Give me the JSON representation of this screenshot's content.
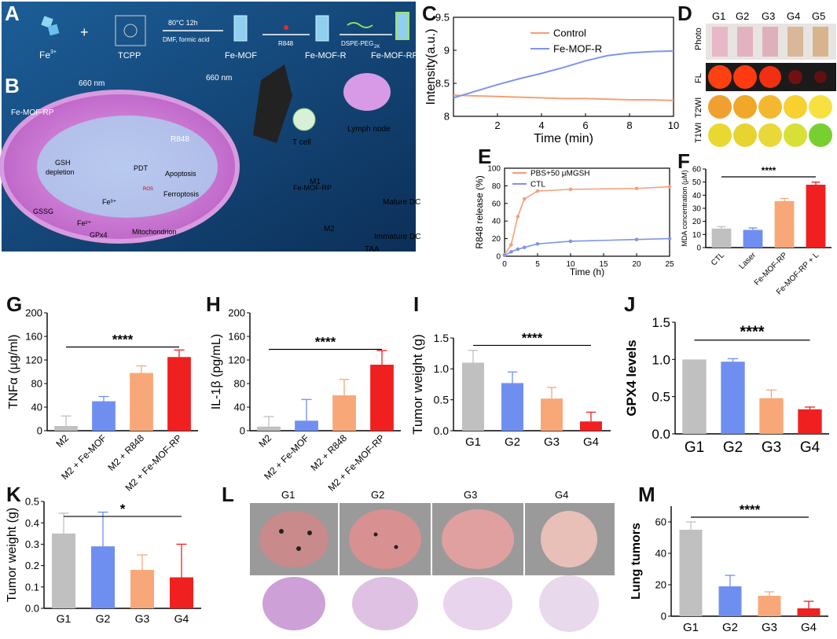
{
  "labels": {
    "A": "A",
    "B": "B",
    "C": "C",
    "D": "D",
    "E": "E",
    "F": "F",
    "G": "G",
    "H": "H",
    "I": "I",
    "J": "J",
    "K": "K",
    "L": "L",
    "M": "M"
  },
  "colors": {
    "grey": "#c0c0c0",
    "blue": "#6f8ff0",
    "orange": "#f8a878",
    "red": "#f02020",
    "line_orange": "#f4a078",
    "line_blue": "#7f95e6"
  },
  "schematic": {
    "fe": "Fe",
    "fe_sup": "3+",
    "tcpp": "TCPP",
    "cond1": "80°C 12h",
    "cond2": "DMF, formic acid",
    "femof": "Fe-MOF",
    "r848": "R848",
    "femofr": "Fe-MOF-R",
    "dspe": "DSPE-PEG",
    "dspe_sub": "2K",
    "femofrp": "Fe-MOF-RP",
    "nm660": "660 nm",
    "nm660b": "660 nm",
    "cell_femofrp": "Fe-MOF-RP",
    "r848b": "R848",
    "pdt": "PDT",
    "apoptosis": "Apoptosis",
    "gsh": "GSH",
    "depletion": "depletion",
    "ros": "ROS",
    "ferroptosis": "Ferroptosis",
    "fe3": "Fe³⁺",
    "gssg": "GSSG",
    "fe2": "Fe²⁺",
    "mito": "Mitochondrion",
    "gpx4": "GPx4",
    "tcell": "T cell",
    "lymph": "Lymph node",
    "m1": "M1",
    "m2": "M2",
    "femofrp_mid": "Fe-MOF-RP",
    "mature": "Mature DC",
    "immature": "Immature DC",
    "taa": "TAA"
  },
  "panel_d": {
    "groups": [
      "G1",
      "G2",
      "G3",
      "G4",
      "G5"
    ],
    "rows": [
      "Photo",
      "FL",
      "T2WI",
      "T1WI"
    ]
  },
  "panel_l": {
    "groups": [
      "G1",
      "G2",
      "G3",
      "G4"
    ]
  },
  "chart_data": [
    {
      "id": "C",
      "type": "line",
      "xlabel": "Time (min)",
      "ylabel": "Intensity(a.u.)",
      "xlim": [
        0,
        10
      ],
      "ylim": [
        8,
        9.5
      ],
      "xticks": [
        2,
        4,
        6,
        8,
        10
      ],
      "yticks": [
        8,
        8.5,
        9,
        9.5
      ],
      "series": [
        {
          "name": "Control",
          "x": [
            0,
            1,
            2,
            3,
            4,
            5,
            6,
            7,
            8,
            9,
            10
          ],
          "y": [
            8.32,
            8.31,
            8.3,
            8.29,
            8.28,
            8.27,
            8.27,
            8.26,
            8.25,
            8.25,
            8.24
          ]
        },
        {
          "name": "Fe-MOF-R",
          "x": [
            0,
            1,
            2,
            3,
            4,
            5,
            6,
            7,
            8,
            9,
            10
          ],
          "y": [
            8.28,
            8.38,
            8.48,
            8.57,
            8.65,
            8.74,
            8.84,
            8.92,
            8.96,
            8.98,
            8.99
          ]
        }
      ]
    },
    {
      "id": "E",
      "type": "line",
      "xlabel": "Time (h)",
      "ylabel": "R848 release (%)",
      "xlim": [
        0,
        25
      ],
      "ylim": [
        0,
        100
      ],
      "xticks": [
        0,
        5,
        10,
        15,
        20,
        25
      ],
      "yticks": [
        0,
        20,
        40,
        60,
        80,
        100
      ],
      "series": [
        {
          "name": "PBS+50 μMGSH",
          "x": [
            0,
            1,
            2,
            3,
            5,
            10,
            20,
            25
          ],
          "y": [
            2,
            13,
            45,
            65,
            74,
            76,
            77,
            79
          ]
        },
        {
          "name": "CTL",
          "x": [
            0,
            1,
            2,
            3,
            5,
            10,
            20,
            25
          ],
          "y": [
            1,
            5,
            8,
            10,
            14,
            17,
            19,
            20
          ]
        }
      ]
    },
    {
      "id": "F",
      "type": "bar",
      "ylabel": "MDA concentration (μM)",
      "ylim": [
        0,
        60
      ],
      "yticks": [
        0,
        10,
        20,
        30,
        40,
        50,
        60
      ],
      "categories": [
        "CTL",
        "Laser",
        "Fe-MOF-RP",
        "Fe-MOF-RP + L"
      ],
      "values": [
        14.5,
        13.5,
        35.5,
        48
      ],
      "errors": [
        1.5,
        1.5,
        2,
        2
      ],
      "significance": "****"
    },
    {
      "id": "G",
      "type": "bar",
      "ylabel": "TNFα (μg/ml)",
      "ylim": [
        0,
        200
      ],
      "yticks": [
        0,
        40,
        80,
        120,
        160,
        200
      ],
      "categories": [
        "M2",
        "M2 + Fe-MOF",
        "M2 + R848",
        "M2 + Fe-MOF-RP"
      ],
      "values": [
        8,
        50,
        98,
        125
      ],
      "errors": [
        17,
        8,
        12,
        12
      ],
      "significance": "****"
    },
    {
      "id": "H",
      "type": "bar",
      "ylabel": "IL-1β (pg/mL)",
      "ylim": [
        0,
        200
      ],
      "yticks": [
        0,
        40,
        80,
        120,
        160,
        200
      ],
      "categories": [
        "M2",
        "M2 + Fe-MOF",
        "M2 + R848",
        "M2 + Fe-MOF-RP"
      ],
      "values": [
        7,
        17,
        60,
        112
      ],
      "errors": [
        17,
        36,
        27,
        24
      ],
      "significance": "****"
    },
    {
      "id": "I",
      "type": "bar",
      "ylabel": "Tumor weight (g)",
      "ylim": [
        0,
        1.5
      ],
      "yticks": [
        0,
        0.5,
        1.0,
        1.5
      ],
      "categories": [
        "G1",
        "G2",
        "G3",
        "G4"
      ],
      "values": [
        1.1,
        0.77,
        0.52,
        0.15
      ],
      "errors": [
        0.2,
        0.18,
        0.18,
        0.15
      ],
      "significance": "****"
    },
    {
      "id": "J",
      "type": "bar",
      "ylabel": "GPX4 levels",
      "ylim": [
        0,
        1.5
      ],
      "yticks": [
        0.0,
        0.5,
        1.0,
        1.5
      ],
      "categories": [
        "G1",
        "G2",
        "G3",
        "G4"
      ],
      "values": [
        1.0,
        0.97,
        0.48,
        0.33
      ],
      "errors": [
        0,
        0.04,
        0.11,
        0.03
      ],
      "significance": "****"
    },
    {
      "id": "K",
      "type": "bar",
      "ylabel": "Tumor weight (g)",
      "ylim": [
        0,
        0.5
      ],
      "yticks": [
        0.0,
        0.1,
        0.2,
        0.3,
        0.4,
        0.5
      ],
      "categories": [
        "G1",
        "G2",
        "G3",
        "G4"
      ],
      "values": [
        0.35,
        0.29,
        0.18,
        0.145
      ],
      "errors": [
        0.095,
        0.16,
        0.07,
        0.155
      ],
      "significance": "*"
    },
    {
      "id": "M",
      "type": "bar",
      "ylabel": "Lung tumors",
      "ylim": [
        0,
        70
      ],
      "yticks": [
        0,
        20,
        40,
        60
      ],
      "categories": [
        "G1",
        "G2",
        "G3",
        "G4"
      ],
      "values": [
        55,
        19,
        13,
        5
      ],
      "errors": [
        5,
        7,
        2.5,
        4.5
      ],
      "significance": "****"
    }
  ]
}
